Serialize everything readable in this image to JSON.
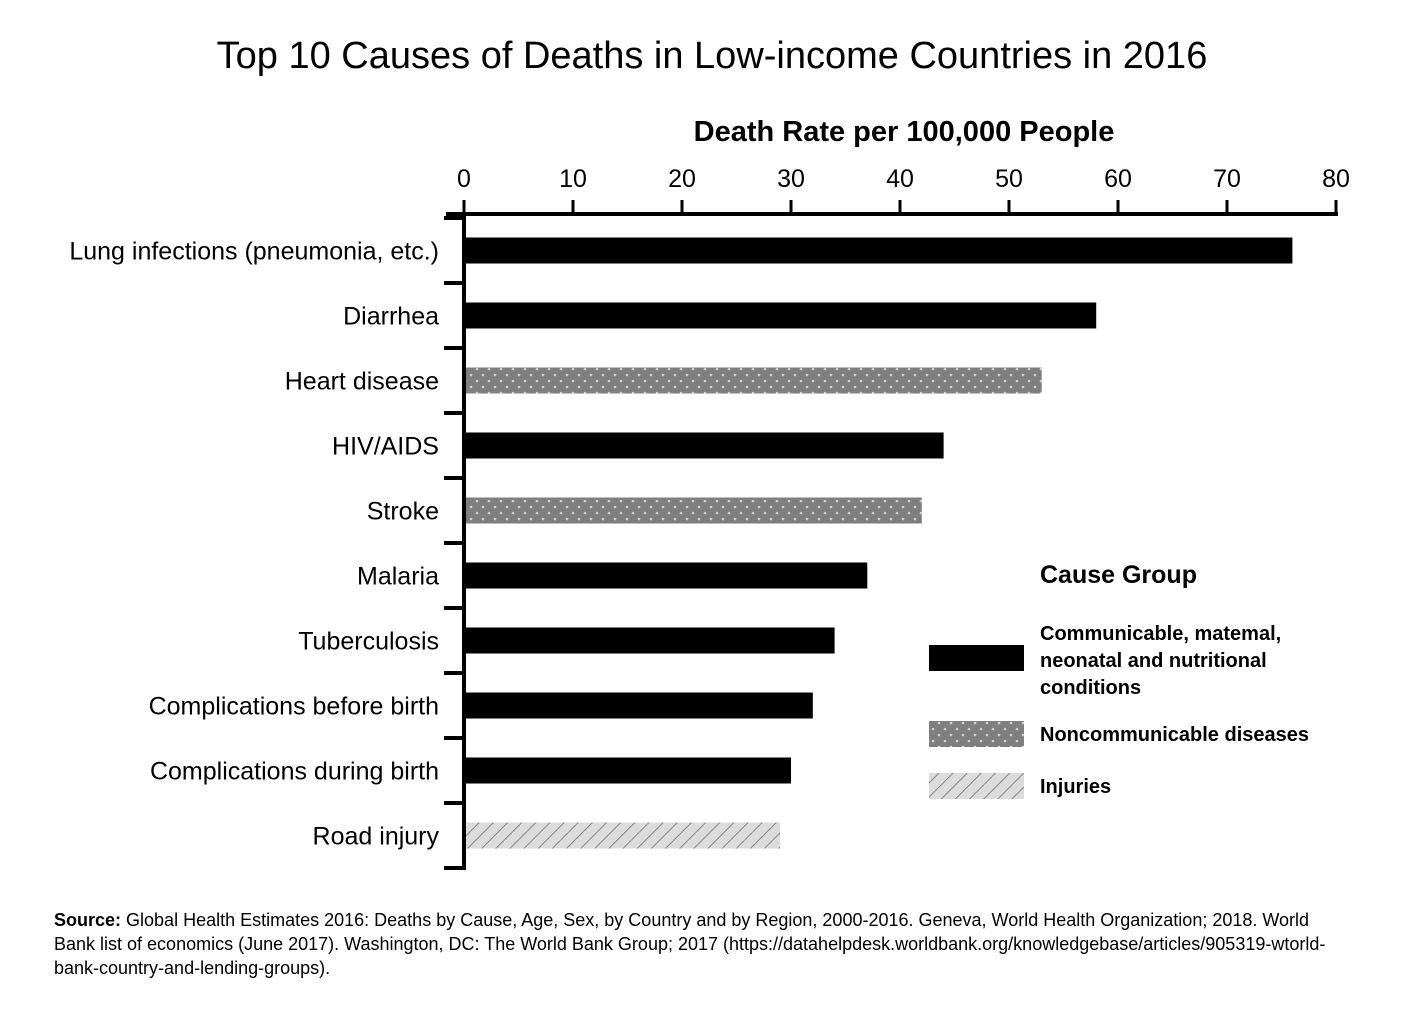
{
  "chart_data": {
    "type": "bar",
    "orientation": "horizontal",
    "title": "Top 10 Causes of Deaths in Low-income Countries in 2016",
    "xlabel": "Death Rate per 100,000 People",
    "ylabel": "",
    "xlim": [
      0,
      80
    ],
    "x_ticks": [
      0,
      10,
      20,
      30,
      40,
      50,
      60,
      70,
      80
    ],
    "x_axis_position": "top",
    "grid": false,
    "legend_position": "right",
    "categories": [
      "Lung infections (pneumonia, etc.)",
      "Diarrhea",
      "Heart disease",
      "HIV/AIDS",
      "Stroke",
      "Malaria",
      "Tuberculosis",
      "Complications before birth",
      "Complications during birth",
      "Road injury"
    ],
    "values": [
      76,
      58,
      53,
      44,
      42,
      37,
      34,
      32,
      30,
      29
    ],
    "groups": [
      "communicable",
      "communicable",
      "noncommunicable",
      "communicable",
      "noncommunicable",
      "communicable",
      "communicable",
      "communicable",
      "communicable",
      "injuries"
    ],
    "legend": {
      "title": "Cause Group",
      "entries": [
        {
          "key": "communicable",
          "lines": [
            "Communicable, matemal,",
            "neonatal and nutritional",
            "conditions"
          ],
          "color": "#000000",
          "pattern": "solid"
        },
        {
          "key": "noncommunicable",
          "lines": [
            "Noncommunicable diseases"
          ],
          "color": "#808080",
          "pattern": "dots"
        },
        {
          "key": "injuries",
          "lines": [
            "Injuries"
          ],
          "color": "#d9d9d9",
          "pattern": "diagonal-hatch"
        }
      ]
    }
  },
  "source": {
    "label": "Source:",
    "text": " Global Health Estimates 2016: Deaths by Cause, Age, Sex, by Country and by Region, 2000-2016. Geneva, World Health Organization; 2018. World Bank list of economics (June 2017). Washington, DC: The World Bank Group; 2017 (https://datahelpdesk.worldbank.org/knowledgebase/articles/905319-wtorld-bank-country-and-lending-groups)."
  }
}
